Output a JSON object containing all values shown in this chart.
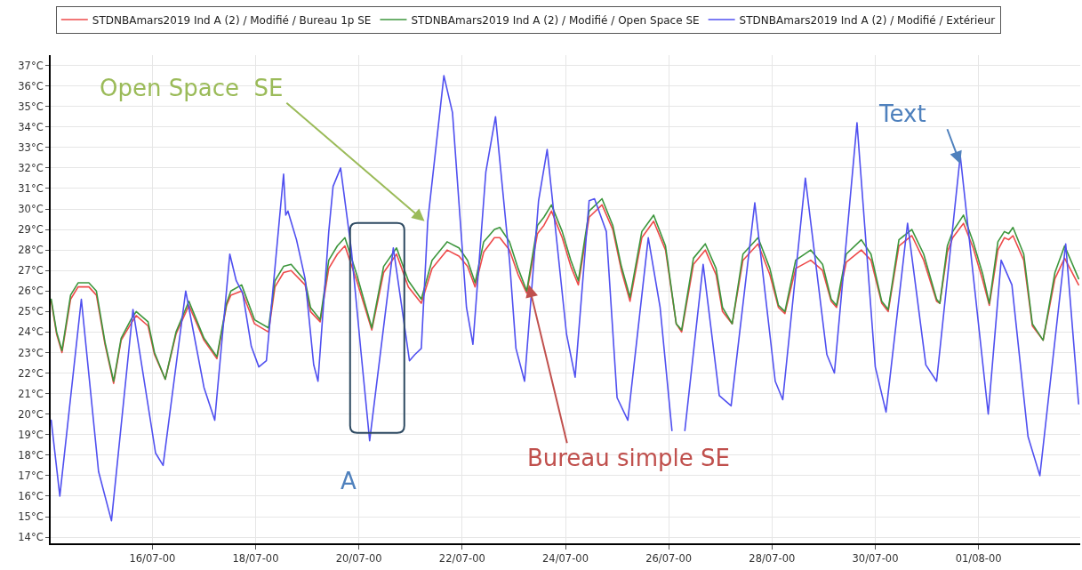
{
  "chart_data": {
    "type": "line",
    "series": [
      {
        "name": "STDNBAmars2019 Ind A (2) / Modifié / Bureau 1p SE",
        "color": "#ee4a4a",
        "x": [
          "2000-07-14T01:00",
          "2000-07-14T03:30",
          "2000-07-14T06:00",
          "2000-07-14T10:00",
          "2000-07-14T13:30",
          "2000-07-14T18:30",
          "2000-07-14T22:00",
          "2000-07-15T02:00",
          "2000-07-15T06:00",
          "2000-07-15T09:30",
          "2000-07-15T14:00",
          "2000-07-15T16:30",
          "2000-07-15T22:00",
          "2000-07-16T01:00",
          "2000-07-16T06:00",
          "2000-07-16T11:00",
          "2000-07-16T17:00",
          "2000-07-17T00:00",
          "2000-07-17T06:00",
          "2000-07-17T10:30",
          "2000-07-17T12:30",
          "2000-07-17T17:30",
          "2000-07-17T23:30",
          "2000-07-18T06:00",
          "2000-07-18T09:00",
          "2000-07-18T13:00",
          "2000-07-18T16:30",
          "2000-07-18T23:00",
          "2000-07-19T01:30",
          "2000-07-19T06:00",
          "2000-07-19T10:00",
          "2000-07-19T14:00",
          "2000-07-19T17:30",
          "2000-07-19T23:00",
          "2000-07-20T06:00",
          "2000-07-20T11:30",
          "2000-07-20T17:30",
          "2000-07-20T23:00",
          "2000-07-21T05:00",
          "2000-07-21T10:00",
          "2000-07-21T17:00",
          "2000-07-21T22:30",
          "2000-07-22T02:30",
          "2000-07-22T06:00",
          "2000-07-22T10:00",
          "2000-07-22T15:00",
          "2000-07-22T17:30",
          "2000-07-22T22:00",
          "2000-07-23T02:00",
          "2000-07-23T06:00",
          "2000-07-23T11:00",
          "2000-07-23T14:00",
          "2000-07-23T17:30",
          "2000-07-23T22:30",
          "2000-07-24T02:30",
          "2000-07-24T06:00",
          "2000-07-24T11:00",
          "2000-07-24T17:00",
          "2000-07-24T22:00",
          "2000-07-25T02:00",
          "2000-07-25T06:00",
          "2000-07-25T11:30",
          "2000-07-25T17:00",
          "2000-07-25T22:30",
          "2000-07-26T03:30",
          "2000-07-26T06:00",
          "2000-07-26T11:30",
          "2000-07-26T17:00",
          "2000-07-26T22:00",
          "2000-07-27T01:00",
          "2000-07-27T05:30",
          "2000-07-27T10:30",
          "2000-07-27T17:30",
          "2000-07-27T23:00",
          "2000-07-28T03:00",
          "2000-07-28T06:00",
          "2000-07-28T11:00",
          "2000-07-28T18:00",
          "2000-07-28T23:30",
          "2000-07-29T03:30",
          "2000-07-29T06:00",
          "2000-07-29T10:30",
          "2000-07-29T17:30",
          "2000-07-29T22:00",
          "2000-07-30T03:00",
          "2000-07-30T06:00",
          "2000-07-30T11:00",
          "2000-07-30T17:00",
          "2000-07-30T22:30",
          "2000-07-31T04:30",
          "2000-07-31T06:00",
          "2000-07-31T09:30",
          "2000-07-31T12:00",
          "2000-07-31T17:00",
          "2000-07-31T21:30",
          "2000-08-01T02:00",
          "2000-08-01T05:00",
          "2000-08-01T09:00",
          "2000-08-01T12:00",
          "2000-08-01T14:00",
          "2000-08-01T16:00",
          "2000-08-01T21:00",
          "2000-08-02T01:00",
          "2000-08-02T06:00",
          "2000-08-02T11:30",
          "2000-08-02T16:00",
          "2000-08-02T22:30"
        ],
        "values": [
          25.5,
          23.9,
          23.0,
          25.6,
          26.2,
          26.2,
          25.8,
          23.4,
          21.5,
          23.6,
          24.4,
          24.8,
          24.3,
          22.9,
          21.7,
          23.9,
          25.3,
          23.6,
          22.7,
          25.3,
          25.8,
          26.0,
          24.4,
          24.0,
          26.2,
          26.9,
          27.0,
          26.3,
          25.0,
          24.5,
          27.1,
          27.8,
          28.2,
          26.5,
          24.1,
          26.9,
          27.8,
          26.2,
          25.4,
          27.1,
          28.0,
          27.7,
          27.2,
          26.2,
          27.9,
          28.6,
          28.6,
          28.0,
          26.8,
          25.9,
          28.8,
          29.2,
          29.9,
          28.6,
          27.2,
          26.3,
          29.6,
          30.2,
          29.0,
          27.0,
          25.5,
          28.6,
          29.4,
          28.0,
          24.4,
          24.0,
          27.3,
          28.0,
          26.8,
          25.0,
          24.4,
          27.5,
          28.3,
          26.8,
          25.2,
          24.9,
          27.1,
          27.5,
          27.0,
          25.5,
          25.2,
          27.4,
          28.0,
          27.5,
          25.4,
          25.0,
          28.2,
          28.7,
          27.5,
          25.5,
          25.4,
          27.9,
          28.6,
          29.3,
          28.1,
          26.5,
          25.3,
          28.0,
          28.6,
          28.5,
          28.7,
          27.5,
          24.3,
          23.6,
          26.6,
          27.6,
          26.3
        ]
      },
      {
        "name": "STDNBAmars2019 Ind A (2) / Modifié / Open Space SE",
        "color": "#3c963c",
        "x": [
          "2000-07-14T01:00",
          "2000-07-14T03:30",
          "2000-07-14T06:00",
          "2000-07-14T10:00",
          "2000-07-14T13:30",
          "2000-07-14T18:30",
          "2000-07-14T22:00",
          "2000-07-15T02:00",
          "2000-07-15T06:00",
          "2000-07-15T09:30",
          "2000-07-15T14:00",
          "2000-07-15T16:30",
          "2000-07-15T22:00",
          "2000-07-16T01:00",
          "2000-07-16T06:00",
          "2000-07-16T11:00",
          "2000-07-16T17:00",
          "2000-07-17T00:00",
          "2000-07-17T06:00",
          "2000-07-17T10:30",
          "2000-07-17T12:30",
          "2000-07-17T17:30",
          "2000-07-17T23:30",
          "2000-07-18T06:00",
          "2000-07-18T09:00",
          "2000-07-18T13:00",
          "2000-07-18T16:30",
          "2000-07-18T23:00",
          "2000-07-19T01:30",
          "2000-07-19T06:00",
          "2000-07-19T10:00",
          "2000-07-19T14:00",
          "2000-07-19T17:30",
          "2000-07-19T23:00",
          "2000-07-20T06:00",
          "2000-07-20T11:30",
          "2000-07-20T17:30",
          "2000-07-20T23:00",
          "2000-07-21T05:00",
          "2000-07-21T10:00",
          "2000-07-21T17:00",
          "2000-07-21T22:30",
          "2000-07-22T02:30",
          "2000-07-22T06:00",
          "2000-07-22T10:00",
          "2000-07-22T15:00",
          "2000-07-22T17:30",
          "2000-07-22T22:00",
          "2000-07-23T02:00",
          "2000-07-23T06:00",
          "2000-07-23T11:00",
          "2000-07-23T14:00",
          "2000-07-23T17:30",
          "2000-07-23T22:30",
          "2000-07-24T02:30",
          "2000-07-24T06:00",
          "2000-07-24T11:00",
          "2000-07-24T17:00",
          "2000-07-24T22:00",
          "2000-07-25T02:00",
          "2000-07-25T06:00",
          "2000-07-25T11:30",
          "2000-07-25T17:00",
          "2000-07-25T22:30",
          "2000-07-26T03:30",
          "2000-07-26T06:00",
          "2000-07-26T11:30",
          "2000-07-26T17:00",
          "2000-07-26T22:00",
          "2000-07-27T01:00",
          "2000-07-27T05:30",
          "2000-07-27T10:30",
          "2000-07-27T17:30",
          "2000-07-27T23:00",
          "2000-07-28T03:00",
          "2000-07-28T06:00",
          "2000-07-28T11:00",
          "2000-07-28T18:00",
          "2000-07-28T23:30",
          "2000-07-29T03:30",
          "2000-07-29T06:00",
          "2000-07-29T10:30",
          "2000-07-29T17:30",
          "2000-07-29T22:00",
          "2000-07-30T03:00",
          "2000-07-30T06:00",
          "2000-07-30T11:00",
          "2000-07-30T17:00",
          "2000-07-30T22:30",
          "2000-07-31T04:30",
          "2000-07-31T06:00",
          "2000-07-31T09:30",
          "2000-07-31T12:00",
          "2000-07-31T17:00",
          "2000-07-31T21:30",
          "2000-08-01T02:00",
          "2000-08-01T05:00",
          "2000-08-01T09:00",
          "2000-08-01T12:00",
          "2000-08-01T14:00",
          "2000-08-01T16:00",
          "2000-08-01T21:00",
          "2000-08-02T01:00",
          "2000-08-02T06:00",
          "2000-08-02T11:30",
          "2000-08-02T16:00",
          "2000-08-02T22:30"
        ],
        "values": [
          25.6,
          24.0,
          23.1,
          25.8,
          26.4,
          26.4,
          26.0,
          23.5,
          21.6,
          23.7,
          24.6,
          25.0,
          24.5,
          23.0,
          21.7,
          24.0,
          25.5,
          23.7,
          22.8,
          25.4,
          26.0,
          26.3,
          24.6,
          24.2,
          26.5,
          27.2,
          27.3,
          26.5,
          25.2,
          24.6,
          27.5,
          28.2,
          28.6,
          26.8,
          24.2,
          27.2,
          28.1,
          26.5,
          25.6,
          27.5,
          28.4,
          28.1,
          27.5,
          26.4,
          28.4,
          29.0,
          29.1,
          28.4,
          27.1,
          26.0,
          29.2,
          29.6,
          30.2,
          28.9,
          27.5,
          26.5,
          29.9,
          30.5,
          29.2,
          27.2,
          25.7,
          28.9,
          29.7,
          28.2,
          24.4,
          24.1,
          27.6,
          28.3,
          27.1,
          25.2,
          24.4,
          27.8,
          28.6,
          27.1,
          25.3,
          25.0,
          27.5,
          28.0,
          27.3,
          25.6,
          25.3,
          27.8,
          28.5,
          27.8,
          25.5,
          25.1,
          28.5,
          29.0,
          27.8,
          25.6,
          25.4,
          28.2,
          28.9,
          29.7,
          28.4,
          26.8,
          25.4,
          28.4,
          28.9,
          28.8,
          29.1,
          27.8,
          24.4,
          23.6,
          26.9,
          28.2,
          26.6
        ]
      },
      {
        "name": "STDNBAmars2019 Ind A (2) / Modifié / Extérieur",
        "color": "#5050f0",
        "x": [
          "2000-07-14T01:00",
          "2000-07-14T05:00",
          "2000-07-14T15:00",
          "2000-07-14T23:00",
          "2000-07-15T05:00",
          "2000-07-15T15:00",
          "2000-07-16T01:30",
          "2000-07-16T05:00",
          "2000-07-16T15:30",
          "2000-07-17T00:00",
          "2000-07-17T05:00",
          "2000-07-17T12:00",
          "2000-07-17T15:00",
          "2000-07-17T18:00",
          "2000-07-17T22:00",
          "2000-07-18T01:30",
          "2000-07-18T05:00",
          "2000-07-18T13:00",
          "2000-07-18T14:00",
          "2000-07-18T15:00",
          "2000-07-18T19:00",
          "2000-07-18T23:00",
          "2000-07-19T03:00",
          "2000-07-19T05:00",
          "2000-07-19T10:00",
          "2000-07-19T12:00",
          "2000-07-19T15:30",
          "2000-07-19T20:30",
          "2000-07-20T01:00",
          "2000-07-20T05:00",
          "2000-07-20T16:00",
          "2000-07-20T23:30",
          "2000-07-21T02:00",
          "2000-07-21T05:00",
          "2000-07-21T08:00",
          "2000-07-21T15:30",
          "2000-07-21T19:30",
          "2000-07-22T02:00",
          "2000-07-22T05:00",
          "2000-07-22T11:00",
          "2000-07-22T15:30",
          "2000-07-22T22:00",
          "2000-07-23T01:00",
          "2000-07-23T05:00",
          "2000-07-23T11:30",
          "2000-07-23T15:30",
          "2000-07-24T00:30",
          "2000-07-24T04:30",
          "2000-07-24T11:00",
          "2000-07-24T13:30",
          "2000-07-24T19:00",
          "2000-07-25T00:00",
          "2000-07-25T05:00",
          "2000-07-25T14:30",
          "2000-07-25T20:00",
          "2000-07-26T01:30",
          "2000-07-26T05:00",
          "2000-07-26T07:30",
          "2000-07-26T16:00",
          "2000-07-26T23:30",
          "2000-07-27T05:00",
          "2000-07-27T16:00",
          "2000-07-28T01:30",
          "2000-07-28T05:00",
          "2000-07-28T15:30",
          "2000-07-29T01:30",
          "2000-07-29T05:00",
          "2000-07-29T15:30",
          "2000-07-30T00:00",
          "2000-07-30T05:00",
          "2000-07-30T15:00",
          "2000-07-30T23:30",
          "2000-07-31T04:30",
          "2000-07-31T15:30",
          "2000-08-01T04:30",
          "2000-08-01T10:30",
          "2000-08-01T15:30",
          "2000-08-01T23:00",
          "2000-08-02T04:30",
          "2000-08-02T16:30",
          "2000-08-02T22:30"
        ],
        "values": [
          19.7,
          16.0,
          25.6,
          17.2,
          14.8,
          25.1,
          18.1,
          17.5,
          26.0,
          21.3,
          19.7,
          27.8,
          26.5,
          25.9,
          23.3,
          22.3,
          22.6,
          31.7,
          29.7,
          29.9,
          28.5,
          26.6,
          22.4,
          21.6,
          28.9,
          31.1,
          32.0,
          28.0,
          23.0,
          18.7,
          28.1,
          22.6,
          22.9,
          23.2,
          29.4,
          36.5,
          34.7,
          25.2,
          23.4,
          31.8,
          34.5,
          27.5,
          23.2,
          21.6,
          30.4,
          32.9,
          23.9,
          21.8,
          30.4,
          30.5,
          28.9,
          20.8,
          19.7,
          28.6,
          25.2,
          19.2,
          null,
          19.2,
          27.3,
          20.9,
          20.4,
          30.3,
          21.6,
          20.7,
          31.5,
          22.9,
          22.0,
          34.2,
          22.3,
          20.1,
          29.3,
          22.4,
          21.6,
          32.6,
          20.0,
          27.5,
          26.3,
          18.9,
          17.0,
          28.3,
          20.5
        ]
      }
    ],
    "xlim": [
      "2000-07-14T00:45",
      "2000-08-02T23:15"
    ],
    "ylim": [
      13.7,
      37.5
    ],
    "xticks": [
      {
        "value": "2000-07-16",
        "label": "16/07-00"
      },
      {
        "value": "2000-07-18",
        "label": "18/07-00"
      },
      {
        "value": "2000-07-20",
        "label": "20/07-00"
      },
      {
        "value": "2000-07-22",
        "label": "22/07-00"
      },
      {
        "value": "2000-07-24",
        "label": "24/07-00"
      },
      {
        "value": "2000-07-26",
        "label": "26/07-00"
      },
      {
        "value": "2000-07-28",
        "label": "28/07-00"
      },
      {
        "value": "2000-07-30",
        "label": "30/07-00"
      },
      {
        "value": "2000-08-01",
        "label": "01/08-00"
      }
    ],
    "yticks": [
      {
        "value": 14,
        "label": "14°C"
      },
      {
        "value": 15,
        "label": "15°C"
      },
      {
        "value": 16,
        "label": "16°C"
      },
      {
        "value": 17,
        "label": "17°C"
      },
      {
        "value": 18,
        "label": "18°C"
      },
      {
        "value": 19,
        "label": "19°C"
      },
      {
        "value": 20,
        "label": "20°C"
      },
      {
        "value": 21,
        "label": "21°C"
      },
      {
        "value": 22,
        "label": "22°C"
      },
      {
        "value": 23,
        "label": "23°C"
      },
      {
        "value": 24,
        "label": "24°C"
      },
      {
        "value": 25,
        "label": "25°C"
      },
      {
        "value": 26,
        "label": "26°C"
      },
      {
        "value": 27,
        "label": "27°C"
      },
      {
        "value": 28,
        "label": "28°C"
      },
      {
        "value": 29,
        "label": "29°C"
      },
      {
        "value": 30,
        "label": "30°C"
      },
      {
        "value": 31,
        "label": "31°C"
      },
      {
        "value": 32,
        "label": "32°C"
      },
      {
        "value": 33,
        "label": "33°C"
      },
      {
        "value": 34,
        "label": "34°C"
      },
      {
        "value": 35,
        "label": "35°C"
      },
      {
        "value": 36,
        "label": "36°C"
      },
      {
        "value": 37,
        "label": "37°C"
      }
    ],
    "grid": true,
    "legend": "top",
    "annotations": [
      {
        "text": "Open Space  SE",
        "x": "2000-07-21T06:30",
        "y": 29.4
      },
      {
        "text": "Text",
        "x": "2000-07-31T15:30",
        "y": 32.2
      },
      {
        "text": "Bureau simple SE",
        "x": "2000-07-23T07:00",
        "y": 26.3
      },
      {
        "text": "A",
        "x": "2000-07-20T05:00",
        "y": 18.7
      }
    ]
  }
}
